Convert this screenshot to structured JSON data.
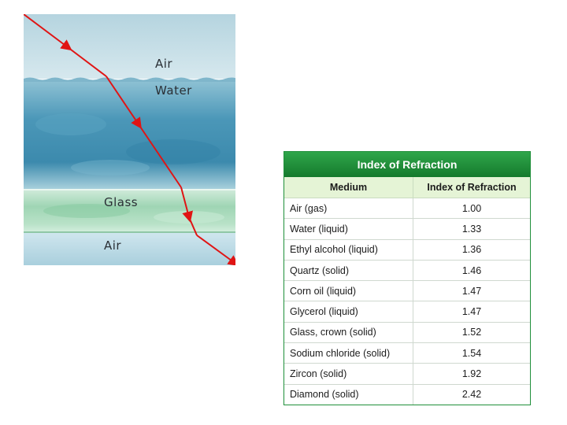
{
  "figure": {
    "labels": {
      "air_top": "Air",
      "water": "Water",
      "glass": "Glass",
      "air_bottom": "Air"
    },
    "colors": {
      "ray": "#e01414",
      "air": "#c2dde7",
      "water": "#3f8fb2",
      "glass": "#a7d9bb"
    }
  },
  "table": {
    "title": "Index of Refraction",
    "headers": {
      "medium": "Medium",
      "index": "Index of Refraction"
    },
    "rows": [
      {
        "medium": "Air (gas)",
        "index": "1.00"
      },
      {
        "medium": "Water (liquid)",
        "index": "1.33"
      },
      {
        "medium": "Ethyl alcohol (liquid)",
        "index": "1.36"
      },
      {
        "medium": "Quartz (solid)",
        "index": "1.46"
      },
      {
        "medium": "Corn oil (liquid)",
        "index": "1.47"
      },
      {
        "medium": "Glycerol (liquid)",
        "index": "1.47"
      },
      {
        "medium": "Glass, crown (solid)",
        "index": "1.52"
      },
      {
        "medium": "Sodium chloride (solid)",
        "index": "1.54"
      },
      {
        "medium": "Zircon (solid)",
        "index": "1.92"
      },
      {
        "medium": "Diamond (solid)",
        "index": "2.42"
      }
    ],
    "colors": {
      "header_green": "#1f8f3a",
      "header_row": "#e5f4d6"
    }
  }
}
